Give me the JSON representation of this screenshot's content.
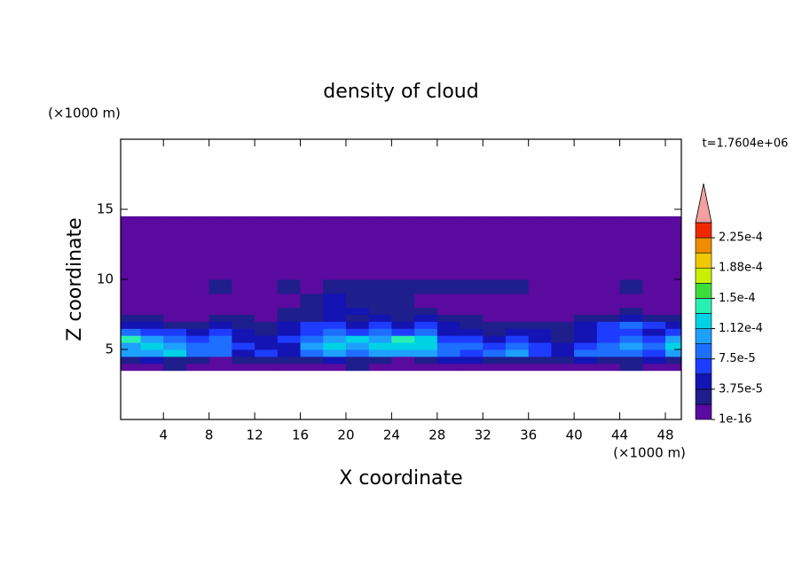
{
  "chart_data": {
    "type": "contour",
    "title": "density of cloud",
    "x_label": "X coordinate",
    "y_label": "Z coordinate",
    "x_unit": "(×1000 m)",
    "y_unit": "(×1000 m)",
    "annotation": "t=1.7604e+06",
    "xlim": [
      0.25,
      49.4
    ],
    "ylim": [
      0,
      20
    ],
    "xticks": [
      4,
      8,
      12,
      16,
      20,
      24,
      28,
      32,
      36,
      40,
      44,
      48
    ],
    "yticks": [
      5,
      10,
      15
    ],
    "x_edges": [
      0,
      2,
      4,
      6,
      8,
      10,
      12,
      14,
      16,
      18,
      20,
      22,
      24,
      26,
      28,
      30,
      32,
      34,
      36,
      38,
      40,
      42,
      44,
      46,
      48,
      50
    ],
    "z_edges": [
      3.5,
      4,
      4.5,
      5,
      5.5,
      6,
      6.5,
      7,
      7.5,
      8,
      9,
      10,
      11,
      12,
      13,
      14.5
    ],
    "values": [
      [
        1e-06,
        1e-06,
        2.5e-05,
        1e-06,
        1e-06,
        1e-06,
        1e-06,
        1e-06,
        1e-06,
        1e-06,
        2.5e-05,
        1e-06,
        1e-06,
        1e-06,
        1e-06,
        1e-06,
        1e-06,
        1e-06,
        1e-06,
        1e-06,
        1e-06,
        1e-06,
        2.5e-05,
        1e-06,
        1e-06
      ],
      [
        2.5e-05,
        4.5e-05,
        2.5e-05,
        2.5e-05,
        1e-06,
        2.5e-05,
        2.5e-05,
        2.5e-05,
        2.5e-05,
        4.5e-05,
        2.5e-05,
        2.5e-05,
        1e-06,
        2.5e-05,
        4.5e-05,
        4.5e-05,
        2.5e-05,
        2.5e-05,
        2.5e-05,
        2.5e-05,
        4.5e-05,
        2.5e-05,
        2.5e-05,
        4.5e-05,
        2.5e-05
      ],
      [
        0.000105,
        0.000105,
        0.00012,
        8.5e-05,
        8.5e-05,
        4.5e-05,
        6.5e-05,
        4.5e-05,
        8.5e-05,
        0.000105,
        8.5e-05,
        0.000105,
        0.000105,
        0.000105,
        8.5e-05,
        6.5e-05,
        8.5e-05,
        0.000105,
        6.5e-05,
        4.5e-05,
        8.5e-05,
        8.5e-05,
        8.5e-05,
        6.5e-05,
        0.000105
      ],
      [
        0.000105,
        0.00012,
        0.000105,
        8.5e-05,
        8.5e-05,
        6.5e-05,
        4.5e-05,
        4.5e-05,
        0.000105,
        0.00012,
        0.000105,
        0.00012,
        0.00012,
        0.00012,
        8.5e-05,
        8.5e-05,
        6.5e-05,
        8.5e-05,
        6.5e-05,
        4.5e-05,
        6.5e-05,
        8.5e-05,
        0.000105,
        8.5e-05,
        0.00012
      ],
      [
        0.00014,
        0.000105,
        8.5e-05,
        6.5e-05,
        8.5e-05,
        4.5e-05,
        4.5e-05,
        6.5e-05,
        8.5e-05,
        0.000105,
        0.00012,
        0.000105,
        0.00014,
        0.00012,
        6.5e-05,
        6.5e-05,
        4.5e-05,
        6.5e-05,
        4.5e-05,
        2.5e-05,
        4.5e-05,
        6.5e-05,
        8.5e-05,
        6.5e-05,
        0.000105
      ],
      [
        8.5e-05,
        6.5e-05,
        6.5e-05,
        4.5e-05,
        6.5e-05,
        4.5e-05,
        2.5e-05,
        4.5e-05,
        6.5e-05,
        8.5e-05,
        6.5e-05,
        8.5e-05,
        6.5e-05,
        8.5e-05,
        4.5e-05,
        4.5e-05,
        2.5e-05,
        4.5e-05,
        4.5e-05,
        2.5e-05,
        4.5e-05,
        6.5e-05,
        6.5e-05,
        4.5e-05,
        6.5e-05
      ],
      [
        4.5e-05,
        4.5e-05,
        2.5e-05,
        2.5e-05,
        4.5e-05,
        2.5e-05,
        2.5e-05,
        4.5e-05,
        6.5e-05,
        6.5e-05,
        4.5e-05,
        6.5e-05,
        4.5e-05,
        6.5e-05,
        4.5e-05,
        2.5e-05,
        2.5e-05,
        2.5e-05,
        2.5e-05,
        2.5e-05,
        4.5e-05,
        6.5e-05,
        8.5e-05,
        6.5e-05,
        4.5e-05
      ],
      [
        2.5e-05,
        2.5e-05,
        1e-06,
        1e-06,
        2.5e-05,
        2.5e-05,
        1e-06,
        2.5e-05,
        2.5e-05,
        4.5e-05,
        2.5e-05,
        4.5e-05,
        2.5e-05,
        4.5e-05,
        2.5e-05,
        2.5e-05,
        1e-06,
        1e-06,
        1e-06,
        1e-06,
        2.5e-05,
        2.5e-05,
        4.5e-05,
        2.5e-05,
        2.5e-05
      ],
      [
        1e-06,
        1e-06,
        1e-06,
        1e-06,
        1e-06,
        1e-06,
        1e-06,
        2.5e-05,
        2.5e-05,
        4.5e-05,
        4.5e-05,
        2.5e-05,
        2.5e-05,
        2.5e-05,
        1e-06,
        1e-06,
        1e-06,
        1e-06,
        1e-06,
        1e-06,
        1e-06,
        1e-06,
        2.5e-05,
        1e-06,
        1e-06
      ],
      [
        1e-06,
        1e-06,
        1e-06,
        1e-06,
        1e-06,
        1e-06,
        1e-06,
        1e-06,
        2.5e-05,
        4.5e-05,
        2.5e-05,
        2.5e-05,
        2.5e-05,
        1e-06,
        1e-06,
        1e-06,
        1e-06,
        1e-06,
        1e-06,
        1e-06,
        1e-06,
        1e-06,
        1e-06,
        1e-06,
        1e-06
      ],
      [
        1e-06,
        1e-06,
        1e-06,
        1e-06,
        2.5e-05,
        1e-06,
        1e-06,
        2.5e-05,
        1e-06,
        2.5e-05,
        2.5e-05,
        2.5e-05,
        2.5e-05,
        2.5e-05,
        2.5e-05,
        2.5e-05,
        2.5e-05,
        2.5e-05,
        1e-06,
        1e-06,
        1e-06,
        1e-06,
        2.5e-05,
        1e-06,
        1e-06
      ],
      [
        1e-06,
        1e-06,
        1e-06,
        1e-06,
        1e-06,
        1e-06,
        1e-06,
        1e-06,
        1e-06,
        1e-06,
        1e-06,
        1e-06,
        1e-06,
        1e-06,
        1e-06,
        1e-06,
        1e-06,
        1e-06,
        1e-06,
        1e-06,
        1e-06,
        1e-06,
        1e-06,
        1e-06,
        1e-06
      ],
      [
        1e-06,
        1e-06,
        1e-06,
        1e-06,
        1e-06,
        1e-06,
        1e-06,
        1e-06,
        1e-06,
        1e-06,
        1e-06,
        1e-06,
        1e-06,
        1e-06,
        1e-06,
        1e-06,
        1e-06,
        1e-06,
        1e-06,
        1e-06,
        1e-06,
        1e-06,
        1e-06,
        1e-06,
        1e-06
      ],
      [
        1e-06,
        1e-06,
        1e-06,
        1e-06,
        1e-06,
        1e-06,
        1e-06,
        1e-06,
        1e-06,
        1e-06,
        1e-06,
        1e-06,
        1e-06,
        1e-06,
        1e-06,
        1e-06,
        1e-06,
        1e-06,
        1e-06,
        1e-06,
        1e-06,
        1e-06,
        1e-06,
        1e-06,
        1e-06
      ],
      [
        1e-06,
        1e-06,
        1e-06,
        1e-06,
        1e-06,
        1e-06,
        1e-06,
        1e-06,
        1e-06,
        1e-06,
        1e-06,
        1e-06,
        1e-06,
        1e-06,
        1e-06,
        1e-06,
        1e-06,
        1e-06,
        1e-06,
        1e-06,
        1e-06,
        1e-06,
        1e-06,
        1e-06,
        1e-06
      ]
    ],
    "colorbar": {
      "levels": [
        1e-16,
        1.875e-05,
        3.75e-05,
        5.625e-05,
        7.5e-05,
        9.375e-05,
        0.0001125,
        0.00013125,
        0.00015,
        0.00016875,
        0.0001875,
        0.00020625,
        0.000225,
        0.00024375
      ],
      "colors": [
        "#5a0a9e",
        "#1e1e8c",
        "#1414b4",
        "#1e3cff",
        "#1e6eff",
        "#1ea0ff",
        "#00d2e6",
        "#28f0b4",
        "#3cdc3c",
        "#c8f000",
        "#f0c800",
        "#f08c00",
        "#f02800"
      ],
      "extend_color": "#f4a0a0",
      "ticks": [
        1e-16,
        {
          "value": 3.75e-05,
          "label": "3.75e-5"
        },
        {
          "value": 7.5e-05,
          "label": "7.5e-5"
        },
        {
          "value": 0.0001125,
          "label": "1.12e-4"
        },
        {
          "value": 0.00015,
          "label": "1.5e-4"
        },
        {
          "value": 0.0001875,
          "label": "1.88e-4"
        },
        {
          "value": 0.000225,
          "label": "2.25e-4"
        }
      ]
    }
  }
}
